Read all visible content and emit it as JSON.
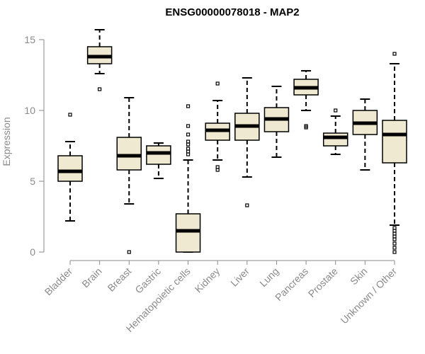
{
  "chart_data": {
    "type": "boxplot",
    "title": "ENSG00000078018 - MAP2",
    "xlabel": "",
    "ylabel": "Expression",
    "ylim": [
      0,
      16
    ],
    "yticks": [
      0,
      5,
      10,
      15
    ],
    "box_fill": "#efe9d1",
    "box_stroke": "#000000",
    "categories": [
      "Bladder",
      "Brain",
      "Breast",
      "Gastric",
      "Hematopoietic cells",
      "Kidney",
      "Liver",
      "Lung",
      "Pancreas",
      "Prostate",
      "Skin",
      "Unknown / Other"
    ],
    "series": [
      {
        "category": "Bladder",
        "whisker_low": 2.2,
        "q1": 5.0,
        "median": 5.7,
        "q3": 6.8,
        "whisker_high": 7.8,
        "outliers": [
          9.7
        ]
      },
      {
        "category": "Brain",
        "whisker_low": 12.6,
        "q1": 13.3,
        "median": 13.8,
        "q3": 14.5,
        "whisker_high": 15.7,
        "outliers": [
          11.5
        ]
      },
      {
        "category": "Breast",
        "whisker_low": 3.4,
        "q1": 5.8,
        "median": 6.8,
        "q3": 8.1,
        "whisker_high": 10.9,
        "outliers": [
          0.0
        ]
      },
      {
        "category": "Gastric",
        "whisker_low": 5.2,
        "q1": 6.2,
        "median": 7.0,
        "q3": 7.5,
        "whisker_high": 7.7,
        "outliers": []
      },
      {
        "category": "Hematopoietic cells",
        "whisker_low": 0.0,
        "q1": 0.0,
        "median": 1.5,
        "q3": 2.7,
        "whisker_high": 6.5,
        "outliers": [
          6.9,
          7.1,
          7.3,
          7.6,
          7.8,
          8.3,
          8.9,
          10.3
        ]
      },
      {
        "category": "Kidney",
        "whisker_low": 6.5,
        "q1": 7.9,
        "median": 8.6,
        "q3": 9.1,
        "whisker_high": 10.7,
        "outliers": [
          5.8,
          6.0,
          11.9
        ]
      },
      {
        "category": "Liver",
        "whisker_low": 5.3,
        "q1": 7.9,
        "median": 8.9,
        "q3": 9.8,
        "whisker_high": 12.3,
        "outliers": [
          3.3
        ]
      },
      {
        "category": "Lung",
        "whisker_low": 6.7,
        "q1": 8.5,
        "median": 9.4,
        "q3": 10.2,
        "whisker_high": 11.7,
        "outliers": []
      },
      {
        "category": "Pancreas",
        "whisker_low": 10.0,
        "q1": 11.1,
        "median": 11.6,
        "q3": 12.2,
        "whisker_high": 12.8,
        "outliers": [
          8.8,
          8.9
        ]
      },
      {
        "category": "Prostate",
        "whisker_low": 6.9,
        "q1": 7.5,
        "median": 8.1,
        "q3": 8.4,
        "whisker_high": 9.6,
        "outliers": [
          10.0
        ]
      },
      {
        "category": "Skin",
        "whisker_low": 5.8,
        "q1": 8.3,
        "median": 9.1,
        "q3": 10.0,
        "whisker_high": 10.8,
        "outliers": []
      },
      {
        "category": "Unknown / Other",
        "whisker_low": 1.9,
        "q1": 6.3,
        "median": 8.3,
        "q3": 9.3,
        "whisker_high": 13.3,
        "outliers": [
          0.0,
          0.3,
          0.6,
          0.9,
          1.1,
          1.3,
          1.5,
          1.7,
          14.0
        ]
      }
    ]
  }
}
